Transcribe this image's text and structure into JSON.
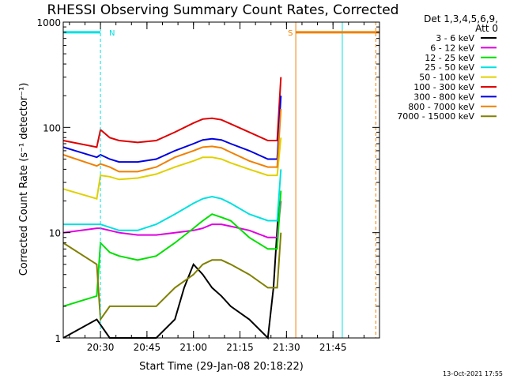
{
  "chart_data": {
    "type": "line",
    "title": "RHESSI Observing Summary Count Rates, Corrected",
    "xlabel": "Start Time (29-Jan-08 20:18:22)",
    "ylabel": "Corrected Count Rate (s⁻¹ detector⁻¹)",
    "yscale": "log",
    "ylim": [
      1,
      1000
    ],
    "xlim_minutes": [
      20.3,
      22.0
    ],
    "x_ticks": [
      {
        "t": 20.5,
        "label": "20:30"
      },
      {
        "t": 20.75,
        "label": "20:45"
      },
      {
        "t": 21.0,
        "label": "21:00"
      },
      {
        "t": 21.25,
        "label": "21:15"
      },
      {
        "t": 21.5,
        "label": "21:30"
      },
      {
        "t": 21.75,
        "label": "21:45"
      }
    ],
    "y_ticks": [
      {
        "v": 1,
        "label": "1"
      },
      {
        "v": 10,
        "label": "10"
      },
      {
        "v": 100,
        "label": "100"
      },
      {
        "v": 1000,
        "label": "1000"
      }
    ],
    "legend": {
      "header": [
        "Det 1,3,4,5,6,9,",
        "Att 0"
      ],
      "position": "right"
    },
    "series": [
      {
        "name": "3 - 6 keV",
        "color": "#000000",
        "points": [
          [
            20.3,
            1
          ],
          [
            20.48,
            1.5
          ],
          [
            20.55,
            1
          ],
          [
            20.8,
            1
          ],
          [
            20.9,
            1.5
          ],
          [
            20.95,
            3
          ],
          [
            21.0,
            5
          ],
          [
            21.05,
            4
          ],
          [
            21.1,
            3
          ],
          [
            21.15,
            2.5
          ],
          [
            21.2,
            2
          ],
          [
            21.3,
            1.5
          ],
          [
            21.4,
            1
          ],
          [
            21.43,
            3
          ],
          [
            21.46,
            20
          ]
        ]
      },
      {
        "name": "6 - 12 keV",
        "color": "#e000e0",
        "points": [
          [
            20.3,
            10
          ],
          [
            20.48,
            11
          ],
          [
            20.5,
            11
          ],
          [
            20.6,
            10
          ],
          [
            20.7,
            9.5
          ],
          [
            20.8,
            9.5
          ],
          [
            20.9,
            10
          ],
          [
            21.0,
            10.5
          ],
          [
            21.05,
            11
          ],
          [
            21.1,
            12
          ],
          [
            21.15,
            12
          ],
          [
            21.2,
            11.5
          ],
          [
            21.3,
            10.5
          ],
          [
            21.4,
            9
          ],
          [
            21.45,
            9
          ],
          [
            21.47,
            20
          ]
        ]
      },
      {
        "name": "12 - 25 keV",
        "color": "#00e000",
        "points": [
          [
            20.3,
            2
          ],
          [
            20.48,
            2.5
          ],
          [
            20.5,
            8
          ],
          [
            20.55,
            6.5
          ],
          [
            20.6,
            6
          ],
          [
            20.7,
            5.5
          ],
          [
            20.8,
            6
          ],
          [
            20.9,
            8
          ],
          [
            21.0,
            11
          ],
          [
            21.05,
            13
          ],
          [
            21.1,
            15
          ],
          [
            21.15,
            14
          ],
          [
            21.2,
            13
          ],
          [
            21.3,
            9
          ],
          [
            21.4,
            7
          ],
          [
            21.45,
            7
          ],
          [
            21.47,
            25
          ]
        ]
      },
      {
        "name": "25 - 50 keV",
        "color": "#00e0e0",
        "points": [
          [
            20.3,
            12
          ],
          [
            20.48,
            12
          ],
          [
            20.5,
            12
          ],
          [
            20.6,
            10.5
          ],
          [
            20.7,
            10.5
          ],
          [
            20.8,
            12
          ],
          [
            20.9,
            15
          ],
          [
            21.0,
            19
          ],
          [
            21.05,
            21
          ],
          [
            21.1,
            22
          ],
          [
            21.15,
            21
          ],
          [
            21.2,
            19
          ],
          [
            21.3,
            15
          ],
          [
            21.4,
            13
          ],
          [
            21.45,
            13
          ],
          [
            21.47,
            40
          ]
        ]
      },
      {
        "name": "50 - 100 keV",
        "color": "#e0d000",
        "points": [
          [
            20.3,
            26
          ],
          [
            20.48,
            21
          ],
          [
            20.5,
            35
          ],
          [
            20.55,
            34
          ],
          [
            20.6,
            32
          ],
          [
            20.7,
            33
          ],
          [
            20.8,
            36
          ],
          [
            20.9,
            42
          ],
          [
            21.0,
            48
          ],
          [
            21.05,
            52
          ],
          [
            21.1,
            52
          ],
          [
            21.15,
            50
          ],
          [
            21.2,
            46
          ],
          [
            21.3,
            40
          ],
          [
            21.4,
            35
          ],
          [
            21.45,
            35
          ],
          [
            21.47,
            80
          ]
        ]
      },
      {
        "name": "100 - 300 keV",
        "color": "#e00000",
        "points": [
          [
            20.3,
            75
          ],
          [
            20.48,
            65
          ],
          [
            20.5,
            95
          ],
          [
            20.55,
            80
          ],
          [
            20.6,
            75
          ],
          [
            20.7,
            72
          ],
          [
            20.8,
            75
          ],
          [
            20.9,
            90
          ],
          [
            21.0,
            110
          ],
          [
            21.05,
            120
          ],
          [
            21.1,
            122
          ],
          [
            21.15,
            118
          ],
          [
            21.2,
            108
          ],
          [
            21.3,
            90
          ],
          [
            21.4,
            75
          ],
          [
            21.45,
            75
          ],
          [
            21.47,
            300
          ]
        ]
      },
      {
        "name": "300 - 800 keV",
        "color": "#0000e0",
        "points": [
          [
            20.3,
            65
          ],
          [
            20.48,
            52
          ],
          [
            20.5,
            55
          ],
          [
            20.55,
            50
          ],
          [
            20.6,
            47
          ],
          [
            20.7,
            47
          ],
          [
            20.8,
            50
          ],
          [
            20.9,
            60
          ],
          [
            21.0,
            70
          ],
          [
            21.05,
            76
          ],
          [
            21.1,
            78
          ],
          [
            21.15,
            76
          ],
          [
            21.2,
            70
          ],
          [
            21.3,
            60
          ],
          [
            21.4,
            50
          ],
          [
            21.45,
            50
          ],
          [
            21.47,
            200
          ]
        ]
      },
      {
        "name": "800 - 7000 keV",
        "color": "#f08000",
        "points": [
          [
            20.3,
            55
          ],
          [
            20.48,
            43
          ],
          [
            20.5,
            45
          ],
          [
            20.55,
            42
          ],
          [
            20.6,
            38
          ],
          [
            20.7,
            38
          ],
          [
            20.8,
            42
          ],
          [
            20.9,
            52
          ],
          [
            21.0,
            60
          ],
          [
            21.05,
            65
          ],
          [
            21.1,
            66
          ],
          [
            21.15,
            64
          ],
          [
            21.2,
            58
          ],
          [
            21.3,
            48
          ],
          [
            21.4,
            42
          ],
          [
            21.45,
            42
          ],
          [
            21.47,
            150
          ]
        ]
      },
      {
        "name": "7000 - 15000 keV",
        "color": "#808000",
        "points": [
          [
            20.3,
            8
          ],
          [
            20.48,
            5
          ],
          [
            20.5,
            1.5
          ],
          [
            20.55,
            2
          ],
          [
            20.6,
            2
          ],
          [
            20.7,
            2
          ],
          [
            20.8,
            2
          ],
          [
            20.9,
            3
          ],
          [
            21.0,
            4
          ],
          [
            21.05,
            5
          ],
          [
            21.1,
            5.5
          ],
          [
            21.15,
            5.5
          ],
          [
            21.2,
            5
          ],
          [
            21.3,
            4
          ],
          [
            21.4,
            3
          ],
          [
            21.45,
            3
          ],
          [
            21.47,
            10
          ]
        ]
      }
    ],
    "flag_markers": [
      {
        "label": "N",
        "color": "#00e0e0",
        "x_from": 20.3,
        "x_to": 20.5,
        "y": 800
      },
      {
        "label": "S",
        "color": "#f08000",
        "x_from": 21.55,
        "x_to": 22.0,
        "y": 800
      }
    ],
    "vlines": [
      {
        "t": 20.5,
        "color": "#00e0e0",
        "style": "dashed"
      },
      {
        "t": 21.55,
        "color": "#f08000",
        "style": "solid"
      },
      {
        "t": 21.8,
        "color": "#00e0e0",
        "style": "solid"
      },
      {
        "t": 21.98,
        "color": "#f08000",
        "style": "dashed"
      }
    ],
    "grid": false
  },
  "footer": {
    "timestamp": "13-Oct-2021 17:55"
  }
}
